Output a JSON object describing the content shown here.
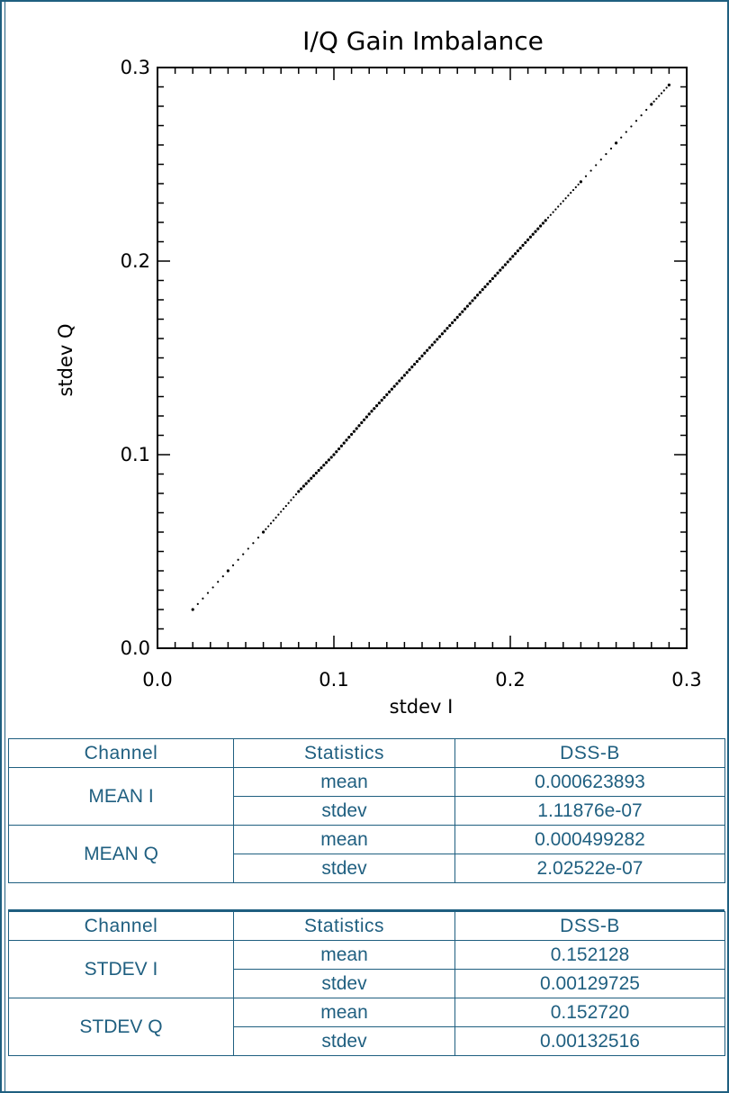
{
  "chart_data": {
    "type": "scatter",
    "title": "I/Q Gain Imbalance",
    "xlabel": "stdev I",
    "ylabel": "stdev Q",
    "xlim": [
      0.0,
      0.3
    ],
    "ylim": [
      0.0,
      0.3
    ],
    "xticks": [
      "0.0",
      "0.1",
      "0.2",
      "0.3"
    ],
    "yticks": [
      "0.0",
      "0.1",
      "0.2",
      "0.3"
    ],
    "grid": false,
    "series": [
      {
        "x": [
          0.02,
          0.04,
          0.06,
          0.08,
          0.1,
          0.12,
          0.14,
          0.16,
          0.18,
          0.2,
          0.22,
          0.24,
          0.26,
          0.28,
          0.29
        ],
        "y": [
          0.02,
          0.04,
          0.06,
          0.081,
          0.1,
          0.121,
          0.141,
          0.161,
          0.181,
          0.201,
          0.221,
          0.241,
          0.261,
          0.281,
          0.291
        ]
      }
    ],
    "color": "#000000"
  },
  "tables": [
    {
      "headers": [
        "Channel",
        "Statistics",
        "DSS-B"
      ],
      "groups": [
        {
          "channel": "MEAN I",
          "rows": [
            {
              "stat": "mean",
              "value": "0.000623893"
            },
            {
              "stat": "stdev",
              "value": "1.11876e-07"
            }
          ]
        },
        {
          "channel": "MEAN Q",
          "rows": [
            {
              "stat": "mean",
              "value": "0.000499282"
            },
            {
              "stat": "stdev",
              "value": "2.02522e-07"
            }
          ]
        }
      ]
    },
    {
      "headers": [
        "Channel",
        "Statistics",
        "DSS-B"
      ],
      "groups": [
        {
          "channel": "STDEV I",
          "rows": [
            {
              "stat": "mean",
              "value": "0.152128"
            },
            {
              "stat": "stdev",
              "value": "0.00129725"
            }
          ]
        },
        {
          "channel": "STDEV Q",
          "rows": [
            {
              "stat": "mean",
              "value": "0.152720"
            },
            {
              "stat": "stdev",
              "value": "0.00132516"
            }
          ]
        }
      ]
    }
  ],
  "colors": {
    "border": "#1f5f80",
    "text": "#1f5f80"
  }
}
